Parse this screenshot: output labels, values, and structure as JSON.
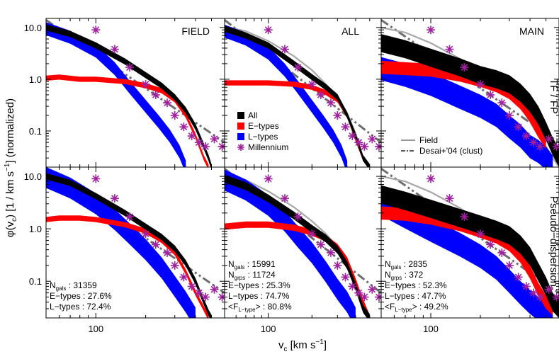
{
  "chart_data": {
    "type": "line",
    "xlabel": "v",
    "xlabel_sub": "c",
    "xlabel_unit": " [km s",
    "xlabel_unit_sup": "−1",
    "xlabel_unit_end": "]",
    "ylabel": "φ(v",
    "ylabel_sub": "c",
    "ylabel_mid": ") [1 / km s",
    "ylabel_sup": "−1",
    "ylabel_end": "] (normalized)",
    "x_scale": "log",
    "y_scale": "log",
    "xlim": [
      50,
      600
    ],
    "ylim": [
      0.02,
      15
    ],
    "x_tick_label": "100",
    "y_tick_labels": [
      "10.0",
      "1.0",
      "0.1"
    ],
    "columns": [
      "FIELD",
      "ALL",
      "MAIN"
    ],
    "rows": [
      "TF / FP",
      "Pseudo−dispersion"
    ],
    "legend_main": [
      {
        "label": "All",
        "color": "#000000",
        "kind": "box"
      },
      {
        "label": "E−types",
        "color": "#ff0000",
        "kind": "box"
      },
      {
        "label": "L−types",
        "color": "#0000ff",
        "kind": "box"
      },
      {
        "label": "Millennium",
        "color": "#a020a0",
        "kind": "star"
      }
    ],
    "legend_ref": [
      {
        "label": "Field",
        "color": "#999999",
        "kind": "solid"
      },
      {
        "label": "Desai+'04 (clust)",
        "color": "#555555",
        "kind": "dashdot"
      }
    ],
    "stats": [
      {
        "n_gals_label": "N",
        "n_gals_sub": "gals",
        "n_gals": " : 31359",
        "lines": [
          "E−types : 27.6%",
          "L−types : 72.4%"
        ]
      },
      {
        "n_gals_label": "N",
        "n_gals_sub": "gals",
        "n_gals": " : 15991",
        "n_grps_label": "N",
        "n_grps_sub": "grps",
        "n_grps": " : 11724",
        "lines": [
          "E−types : 25.3%",
          "L−types : 74.7%"
        ],
        "frac_pre": "<F",
        "frac_sub": "L−type",
        "frac_post": "> : 80.8%"
      },
      {
        "n_gals_label": "N",
        "n_gals_sub": "gals",
        "n_gals": " : 2835",
        "n_grps_label": "N",
        "n_grps_sub": "grps",
        "n_grps": " : 372",
        "lines": [
          "E−types : 52.3%",
          "L−types : 47.7%"
        ],
        "frac_pre": "<F",
        "frac_sub": "L−type",
        "frac_post": "> : 49.2%"
      }
    ],
    "millennium": {
      "x": [
        100,
        130,
        160,
        200,
        230,
        270,
        300,
        340,
        380,
        420,
        460,
        520,
        580
      ],
      "y": [
        9.0,
        3.8,
        1.7,
        0.8,
        0.5,
        0.35,
        0.2,
        0.12,
        0.08,
        0.06,
        0.05,
        0.07,
        0.05
      ]
    },
    "desai": {
      "x": [
        50,
        600
      ],
      "y": [
        14,
        0.06
      ]
    },
    "panels": [
      {
        "col": 0,
        "row": 0,
        "all": {
          "x": [
            50,
            70,
            100,
            150,
            200,
            250,
            300,
            350,
            400,
            450,
            480,
            500
          ],
          "y": [
            10.0,
            7.5,
            4.5,
            2.2,
            1.2,
            0.75,
            0.45,
            0.25,
            0.12,
            0.05,
            0.03,
            0.02
          ]
        },
        "all_width": 0.12,
        "etypes": {
          "x": [
            50,
            60,
            80,
            100,
            150,
            200,
            250,
            300,
            350,
            400,
            450,
            480
          ],
          "y": [
            1.05,
            1.1,
            1.0,
            1.0,
            0.9,
            0.75,
            0.6,
            0.4,
            0.2,
            0.08,
            0.03,
            0.02
          ]
        },
        "e_width": 0.1,
        "ltypes": {
          "x": [
            50,
            70,
            100,
            130,
            160,
            200,
            240,
            280,
            320,
            350
          ],
          "y": [
            9.5,
            6.5,
            3.5,
            1.6,
            0.7,
            0.3,
            0.15,
            0.08,
            0.04,
            0.02
          ]
        },
        "l_width": 0.25,
        "field": null
      },
      {
        "col": 1,
        "row": 0,
        "all": {
          "x": [
            50,
            70,
            100,
            150,
            200,
            250,
            300,
            350,
            400,
            450,
            500
          ],
          "y": [
            9.5,
            7.0,
            4.5,
            2.0,
            1.1,
            0.7,
            0.45,
            0.2,
            0.08,
            0.03,
            0.02
          ]
        },
        "all_width": 0.12,
        "etypes": {
          "x": [
            50,
            80,
            100,
            150,
            200,
            250,
            300,
            350,
            400,
            450,
            500
          ],
          "y": [
            0.85,
            0.85,
            0.85,
            0.8,
            0.7,
            0.55,
            0.4,
            0.2,
            0.07,
            0.03,
            0.02
          ]
        },
        "e_width": 0.1,
        "ltypes": {
          "x": [
            50,
            70,
            100,
            130,
            160,
            200,
            240,
            280,
            320,
            350
          ],
          "y": [
            8.5,
            6.0,
            3.2,
            1.5,
            0.7,
            0.3,
            0.15,
            0.08,
            0.04,
            0.02
          ]
        },
        "l_width": 0.25,
        "field": {
          "x": [
            50,
            70,
            100,
            150,
            200,
            250,
            300,
            350,
            400,
            450,
            500
          ],
          "y": [
            10.5,
            8.5,
            5.5,
            2.8,
            1.5,
            0.8,
            0.45,
            0.22,
            0.09,
            0.03,
            0.02
          ]
        }
      },
      {
        "col": 2,
        "row": 0,
        "all": {
          "x": [
            50,
            70,
            100,
            150,
            200,
            250,
            300,
            350,
            400,
            450,
            500,
            550,
            600
          ],
          "y": [
            5.0,
            3.8,
            2.6,
            1.7,
            1.2,
            1.0,
            0.8,
            0.55,
            0.35,
            0.2,
            0.1,
            0.05,
            0.03
          ]
        },
        "all_width": 0.35,
        "etypes": {
          "x": [
            50,
            70,
            100,
            150,
            200,
            250,
            300,
            350,
            400,
            450,
            500
          ],
          "y": [
            1.7,
            1.6,
            1.5,
            1.2,
            0.95,
            0.75,
            0.55,
            0.35,
            0.2,
            0.1,
            0.06
          ]
        },
        "e_width": 0.25,
        "ltypes": {
          "x": [
            50,
            70,
            100,
            150,
            200,
            250,
            300,
            350,
            400,
            450,
            500,
            550
          ],
          "y": [
            1.6,
            1.2,
            0.8,
            0.45,
            0.3,
            0.2,
            0.12,
            0.08,
            0.05,
            0.04,
            0.03,
            0.02
          ]
        },
        "l_width": 0.45,
        "field": {
          "x": [
            50,
            70,
            100,
            150,
            200,
            250,
            300,
            350,
            400,
            450,
            500,
            550,
            600
          ],
          "y": [
            10.0,
            8.0,
            5.0,
            2.5,
            1.3,
            0.8,
            0.5,
            0.3,
            0.15,
            0.08,
            0.05,
            0.03,
            0.02
          ]
        }
      },
      {
        "col": 0,
        "row": 1,
        "all": {
          "x": [
            50,
            70,
            100,
            150,
            200,
            250,
            300,
            350,
            400,
            450,
            480,
            500
          ],
          "y": [
            10.0,
            7.5,
            4.2,
            2.0,
            1.1,
            0.7,
            0.42,
            0.22,
            0.1,
            0.04,
            0.025,
            0.02
          ]
        },
        "all_width": 0.12,
        "etypes": {
          "x": [
            50,
            60,
            80,
            100,
            150,
            200,
            250,
            300,
            350,
            400,
            450,
            480
          ],
          "y": [
            1.5,
            1.6,
            1.6,
            1.5,
            1.2,
            0.9,
            0.6,
            0.35,
            0.15,
            0.06,
            0.03,
            0.02
          ]
        },
        "e_width": 0.1,
        "ltypes": {
          "x": [
            50,
            70,
            100,
            130,
            160,
            200,
            250,
            300,
            350,
            400
          ],
          "y": [
            9.5,
            6.0,
            3.0,
            1.5,
            0.8,
            0.4,
            0.18,
            0.08,
            0.04,
            0.02
          ]
        },
        "l_width": 0.4,
        "field": null
      },
      {
        "col": 1,
        "row": 1,
        "all": {
          "x": [
            50,
            70,
            100,
            150,
            200,
            250,
            300,
            350,
            400,
            450,
            500
          ],
          "y": [
            9.0,
            6.5,
            3.8,
            1.8,
            1.0,
            0.65,
            0.4,
            0.2,
            0.08,
            0.03,
            0.02
          ]
        },
        "all_width": 0.15,
        "etypes": {
          "x": [
            50,
            70,
            100,
            150,
            200,
            250,
            300,
            350,
            400,
            450,
            500
          ],
          "y": [
            1.1,
            1.2,
            1.2,
            1.05,
            0.85,
            0.65,
            0.45,
            0.25,
            0.1,
            0.04,
            0.02
          ]
        },
        "e_width": 0.12,
        "ltypes": {
          "x": [
            50,
            70,
            100,
            130,
            160,
            200,
            250,
            300,
            350,
            400
          ],
          "y": [
            8.5,
            5.5,
            2.8,
            1.4,
            0.7,
            0.35,
            0.15,
            0.07,
            0.04,
            0.02
          ]
        },
        "l_width": 0.4,
        "field": {
          "x": [
            50,
            70,
            100,
            150,
            200,
            250,
            300,
            350,
            400,
            450,
            500
          ],
          "y": [
            10.5,
            8.5,
            5.2,
            2.6,
            1.4,
            0.8,
            0.45,
            0.22,
            0.09,
            0.03,
            0.02
          ]
        }
      },
      {
        "col": 2,
        "row": 1,
        "all": {
          "x": [
            50,
            70,
            100,
            150,
            200,
            250,
            300,
            350,
            400,
            450,
            500,
            550,
            600
          ],
          "y": [
            4.5,
            3.4,
            2.4,
            1.6,
            1.2,
            0.95,
            0.75,
            0.5,
            0.3,
            0.15,
            0.08,
            0.04,
            0.03
          ]
        },
        "all_width": 0.35,
        "etypes": {
          "x": [
            50,
            70,
            100,
            150,
            200,
            250,
            300,
            350,
            400,
            450,
            500,
            550
          ],
          "y": [
            2.0,
            1.9,
            1.6,
            1.2,
            0.9,
            0.7,
            0.5,
            0.3,
            0.15,
            0.07,
            0.04,
            0.03
          ]
        },
        "e_width": 0.25,
        "ltypes": {
          "x": [
            50,
            70,
            100,
            150,
            200,
            250,
            300,
            350,
            400,
            450,
            500,
            550
          ],
          "y": [
            3.0,
            1.7,
            0.95,
            0.5,
            0.3,
            0.18,
            0.1,
            0.06,
            0.04,
            0.03,
            0.025,
            0.02
          ]
        },
        "l_width": 0.45,
        "field": {
          "x": [
            50,
            70,
            100,
            150,
            200,
            250,
            300,
            350,
            400,
            450,
            500,
            550,
            600
          ],
          "y": [
            10.0,
            8.0,
            5.0,
            2.5,
            1.3,
            0.8,
            0.5,
            0.3,
            0.15,
            0.08,
            0.05,
            0.03,
            0.02
          ]
        }
      }
    ]
  }
}
